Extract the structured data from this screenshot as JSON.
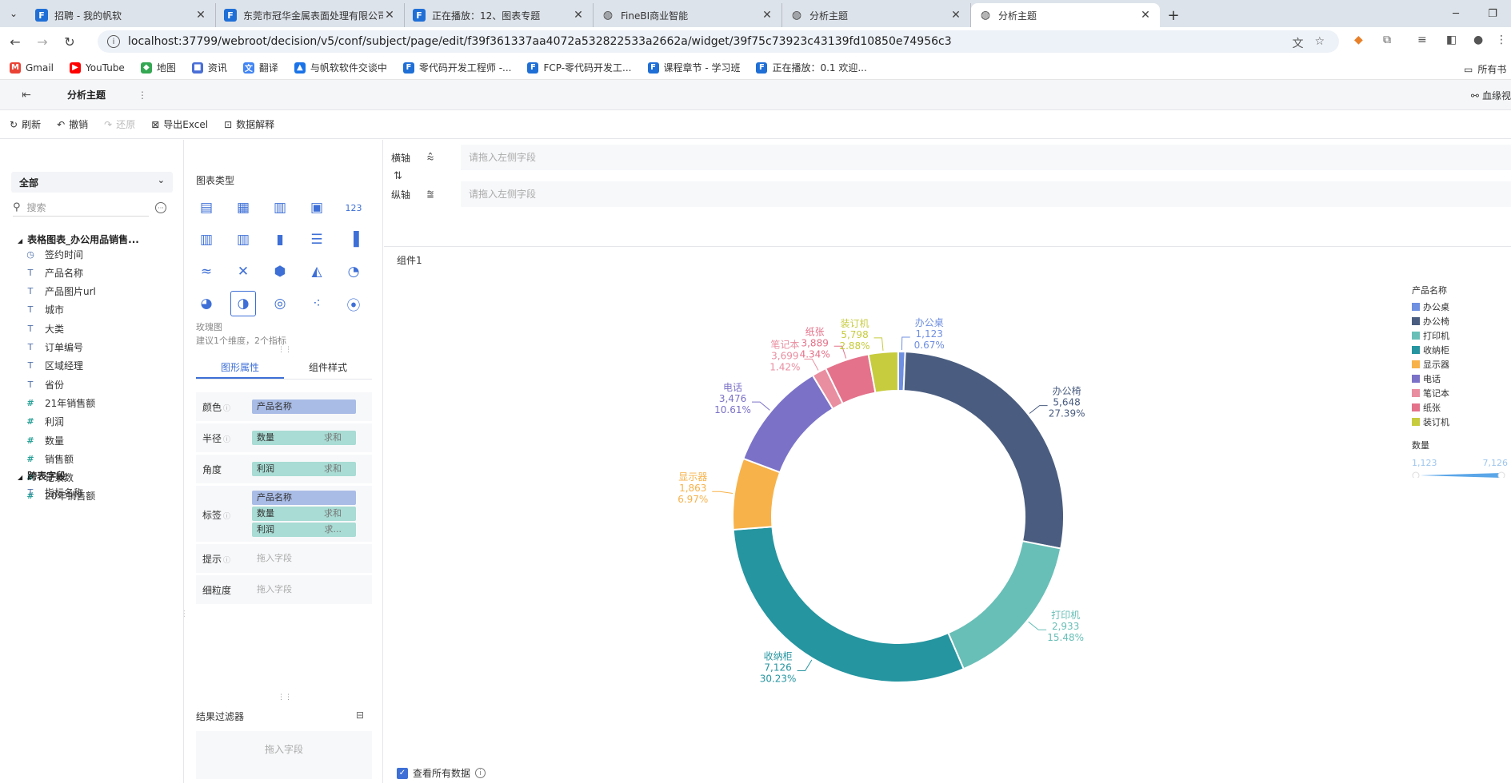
{
  "browser": {
    "tabs": [
      {
        "label": "招聘 - 我的帆软",
        "icon": "fr",
        "active": false
      },
      {
        "label": "东莞市冠华金属表面处理有限公司",
        "icon": "fr",
        "active": false
      },
      {
        "label": "正在播放：12、图表专题",
        "icon": "fr",
        "active": false
      },
      {
        "label": "FineBI商业智能",
        "icon": "globe",
        "active": false
      },
      {
        "label": "分析主题",
        "icon": "globe",
        "active": false
      },
      {
        "label": "分析主题",
        "icon": "globe",
        "active": true
      }
    ],
    "url": "localhost:37799/webroot/decision/v5/conf/subject/page/edit/f39f361337aa4072a532822533a2662a/widget/39f75c73923c43139fd10850e74956c3",
    "bookmarks": [
      {
        "label": "Gmail",
        "color": "#ea4335",
        "glyph": "M"
      },
      {
        "label": "YouTube",
        "color": "#ff0000",
        "glyph": "▶"
      },
      {
        "label": "地图",
        "color": "#34a853",
        "glyph": "◆"
      },
      {
        "label": "资讯",
        "color": "#4a6fd6",
        "glyph": "■"
      },
      {
        "label": "翻译",
        "color": "#4285f4",
        "glyph": "文"
      },
      {
        "label": "与帆软软件交谈中",
        "color": "#1a73e8",
        "glyph": "▲"
      },
      {
        "label": "零代码开发工程师 -...",
        "color": "#1f6fd6",
        "glyph": "F"
      },
      {
        "label": "FCP-零代码开发工...",
        "color": "#1f6fd6",
        "glyph": "F"
      },
      {
        "label": "课程章节 - 学习班",
        "color": "#1f6fd6",
        "glyph": "F"
      },
      {
        "label": "正在播放：0.1 欢迎...",
        "color": "#1f6fd6",
        "glyph": "F"
      }
    ],
    "all_bookmarks": "所有书"
  },
  "app": {
    "title": "分析主题",
    "lineage": "血缘视",
    "toolbar": {
      "refresh": "刷新",
      "undo": "撤销",
      "redo": "还原",
      "export": "导出Excel",
      "explain": "数据解释"
    }
  },
  "fields": {
    "package": "全部",
    "search_placeholder": "搜索",
    "table_name": "表格图表_办公用品销售...",
    "items": [
      {
        "name": "签约时间",
        "type": "date"
      },
      {
        "name": "产品名称",
        "type": "text"
      },
      {
        "name": "产品图片url",
        "type": "text"
      },
      {
        "name": "城市",
        "type": "text"
      },
      {
        "name": "大类",
        "type": "text"
      },
      {
        "name": "订单编号",
        "type": "text"
      },
      {
        "name": "区域经理",
        "type": "text"
      },
      {
        "name": "省份",
        "type": "text"
      },
      {
        "name": "21年销售额",
        "type": "num"
      },
      {
        "name": "利润",
        "type": "num"
      },
      {
        "name": "数量",
        "type": "num"
      },
      {
        "name": "销售额",
        "type": "num"
      },
      {
        "name": "记录数",
        "type": "num"
      },
      {
        "name": "20年销售额",
        "type": "num"
      }
    ],
    "cross_group": "跨表字段",
    "cross_items": [
      {
        "name": "指标名称",
        "type": "text"
      }
    ]
  },
  "config": {
    "chart_type_title": "图表类型",
    "selected_type_name": "玫瑰图",
    "selected_type_hint": "建议1个维度，2个指标",
    "tabs": [
      "图形属性",
      "组件样式"
    ],
    "props": {
      "color": {
        "label": "颜色",
        "pills": [
          {
            "text": "产品名称",
            "kind": "dim",
            "agg": ""
          }
        ]
      },
      "radius": {
        "label": "半径",
        "pills": [
          {
            "text": "数量",
            "kind": "mea",
            "agg": "求和"
          }
        ]
      },
      "angle": {
        "label": "角度",
        "pills": [
          {
            "text": "利润",
            "kind": "mea",
            "agg": "求和"
          }
        ]
      },
      "label": {
        "label": "标签",
        "pills": [
          {
            "text": "产品名称",
            "kind": "dim",
            "agg": ""
          },
          {
            "text": "数量",
            "kind": "mea",
            "agg": "求和"
          },
          {
            "text": "利润",
            "kind": "mea",
            "agg": "求..."
          }
        ]
      },
      "tooltip": {
        "label": "提示",
        "placeholder": "拖入字段"
      },
      "granularity": {
        "label": "细粒度",
        "placeholder": "拖入字段"
      }
    },
    "filter_title": "结果过滤器",
    "filter_placeholder": "拖入字段"
  },
  "axes": {
    "x_label": "横轴",
    "y_label": "纵轴",
    "placeholder": "请拖入左侧字段"
  },
  "canvas": {
    "component_name": "组件1",
    "view_all_label": "查看所有数据"
  },
  "chart_data": {
    "type": "pie",
    "subtype": "donut",
    "categories": [
      "办公桌",
      "办公椅",
      "打印机",
      "收纳柜",
      "显示器",
      "电话",
      "笔记本",
      "纸张",
      "装订机"
    ],
    "values": [
      1123,
      5648,
      2933,
      7126,
      1863,
      3476,
      3699,
      3889,
      5798
    ],
    "value_labels": [
      "1,123",
      "5,648",
      "2,933",
      "7,126",
      "1,863",
      "3,476",
      "3,699",
      "3,889",
      "5,798"
    ],
    "percents": [
      0.67,
      27.39,
      15.48,
      30.23,
      6.97,
      10.61,
      1.42,
      4.34,
      2.88
    ],
    "percent_labels": [
      "0.67%",
      "27.39%",
      "15.48%",
      "30.23%",
      "6.97%",
      "10.61%",
      "1.42%",
      "4.34%",
      "2.88%"
    ],
    "colors": [
      "#6f8fe0",
      "#4a5d80",
      "#68bfb7",
      "#2595a0",
      "#f7b24a",
      "#7b72c8",
      "#e98ea0",
      "#e4728a",
      "#c7cc3e"
    ],
    "legend_title": "产品名称",
    "size_legend": {
      "title": "数量",
      "min_label": "1,123",
      "max_label": "7,126",
      "min": 1123,
      "max": 7126
    },
    "legend_position": "right"
  }
}
